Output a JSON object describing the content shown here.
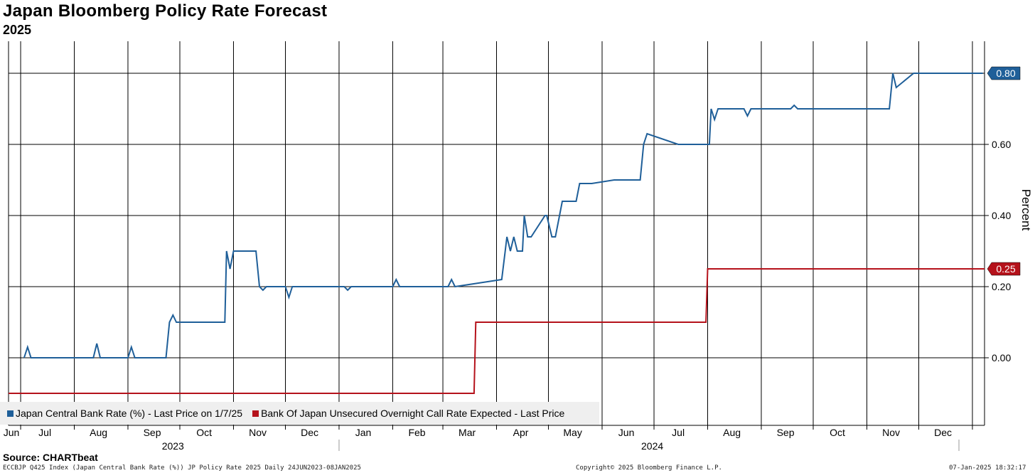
{
  "header": {
    "title": "Japan Bloomberg Policy Rate Forecast",
    "subtitle": "2025"
  },
  "footer": {
    "source": "Source: CHARTbeat",
    "info": "ECCBJP Q425 Index (Japan Central Bank Rate (%)) JP Policy Rate 2025  Daily 24JUN2023-08JAN2025",
    "copyright": "Copyright© 2025 Bloomberg Finance L.P.",
    "timestamp": "07-Jan-2025 18:32:17"
  },
  "colors": {
    "blue": "#1f5f99",
    "red": "#b5121b",
    "grid": "#000000",
    "legend_bg": "#efefef"
  },
  "chart_data": {
    "type": "line",
    "xlabel": "",
    "ylabel": "Percent",
    "x_range": [
      "2023-06-24",
      "2025-01-08"
    ],
    "ylim": [
      -0.19,
      0.89
    ],
    "y_ticks": [
      0.0,
      0.2,
      0.4,
      0.6
    ],
    "y_tick_labels": [
      "0.00",
      "0.20",
      "0.40",
      "0.60"
    ],
    "grid": true,
    "legend_position": "bottom-left",
    "x_month_labels": [
      {
        "label": "Jun",
        "date": "2023-06-15"
      },
      {
        "label": "Jul",
        "date": "2023-07-15"
      },
      {
        "label": "Aug",
        "date": "2023-08-15"
      },
      {
        "label": "Sep",
        "date": "2023-09-15"
      },
      {
        "label": "Oct",
        "date": "2023-10-15"
      },
      {
        "label": "Nov",
        "date": "2023-11-15"
      },
      {
        "label": "Dec",
        "date": "2023-12-15"
      },
      {
        "label": "Jan",
        "date": "2024-01-15"
      },
      {
        "label": "Feb",
        "date": "2024-02-15"
      },
      {
        "label": "Mar",
        "date": "2024-03-15"
      },
      {
        "label": "Apr",
        "date": "2024-04-15"
      },
      {
        "label": "May",
        "date": "2024-05-15"
      },
      {
        "label": "Jun",
        "date": "2024-06-15"
      },
      {
        "label": "Jul",
        "date": "2024-07-15"
      },
      {
        "label": "Aug",
        "date": "2024-08-15"
      },
      {
        "label": "Sep",
        "date": "2024-09-15"
      },
      {
        "label": "Oct",
        "date": "2024-10-15"
      },
      {
        "label": "Nov",
        "date": "2024-11-15"
      },
      {
        "label": "Dec",
        "date": "2024-12-15"
      }
    ],
    "x_year_labels": [
      {
        "label": "2023",
        "date": "2023-09-27"
      },
      {
        "label": "2024",
        "date": "2024-06-30"
      }
    ],
    "series": [
      {
        "name": "Japan Central Bank Rate (%) - Last Price on 1/7/25",
        "color": "#1f5f99",
        "last_value_label": "0.80",
        "x": [
          "2023-07-03",
          "2023-07-05",
          "2023-07-07",
          "2023-07-09",
          "2023-08-12",
          "2023-08-14",
          "2023-08-16",
          "2023-08-18",
          "2023-09-01",
          "2023-09-03",
          "2023-09-05",
          "2023-09-09",
          "2023-09-23",
          "2023-09-25",
          "2023-09-27",
          "2023-09-29",
          "2023-10-27",
          "2023-10-28",
          "2023-10-30",
          "2023-11-01",
          "2023-11-03",
          "2023-11-14",
          "2023-11-16",
          "2023-11-18",
          "2023-11-20",
          "2023-12-01",
          "2023-12-03",
          "2023-12-05",
          "2024-01-04",
          "2024-01-06",
          "2024-01-08",
          "2024-02-01",
          "2024-02-03",
          "2024-02-05",
          "2024-03-04",
          "2024-03-06",
          "2024-03-08",
          "2024-04-04",
          "2024-04-06",
          "2024-04-07",
          "2024-04-09",
          "2024-04-11",
          "2024-04-13",
          "2024-04-16",
          "2024-04-17",
          "2024-04-19",
          "2024-04-21",
          "2024-04-29",
          "2024-04-30",
          "2024-05-03",
          "2024-05-05",
          "2024-05-09",
          "2024-05-11",
          "2024-05-17",
          "2024-05-19",
          "2024-05-25",
          "2024-05-26",
          "2024-06-08",
          "2024-06-09",
          "2024-06-23",
          "2024-06-25",
          "2024-06-27",
          "2024-07-15",
          "2024-08-02",
          "2024-08-03",
          "2024-08-05",
          "2024-08-07",
          "2024-08-22",
          "2024-08-24",
          "2024-08-26",
          "2024-08-28",
          "2024-09-18",
          "2024-09-20",
          "2024-09-22",
          "2024-11-14",
          "2024-11-16",
          "2024-11-18",
          "2024-11-28",
          "2024-11-29",
          "2024-11-30",
          "2024-12-02",
          "2024-12-03",
          "2025-01-07"
        ],
        "y": [
          0.0,
          0.03,
          0.0,
          0.0,
          0.0,
          0.04,
          0.0,
          0.0,
          0.0,
          0.03,
          0.0,
          0.0,
          0.0,
          0.1,
          0.12,
          0.1,
          0.1,
          0.3,
          0.25,
          0.3,
          0.3,
          0.3,
          0.2,
          0.19,
          0.2,
          0.2,
          0.17,
          0.2,
          0.2,
          0.19,
          0.2,
          0.2,
          0.22,
          0.2,
          0.2,
          0.22,
          0.2,
          0.22,
          0.3,
          0.34,
          0.3,
          0.34,
          0.3,
          0.3,
          0.4,
          0.34,
          0.34,
          0.4,
          0.4,
          0.34,
          0.34,
          0.44,
          0.44,
          0.44,
          0.49,
          0.49,
          0.49,
          0.5,
          0.5,
          0.5,
          0.6,
          0.63,
          0.6,
          0.6,
          0.7,
          0.67,
          0.7,
          0.7,
          0.68,
          0.7,
          0.7,
          0.7,
          0.71,
          0.7,
          0.7,
          0.8,
          0.76,
          0.8,
          0.8,
          0.8,
          0.8,
          0.8,
          0.8
        ]
      },
      {
        "name": "Bank Of Japan Unsecured Overnight Call Rate Expected - Last Price",
        "color": "#b5121b",
        "last_value_label": "0.25",
        "x": [
          "2023-06-24",
          "2024-03-19",
          "2024-03-20",
          "2024-07-31",
          "2024-08-01",
          "2025-01-08"
        ],
        "y": [
          -0.1,
          -0.1,
          0.1,
          0.1,
          0.25,
          0.25
        ]
      }
    ]
  }
}
